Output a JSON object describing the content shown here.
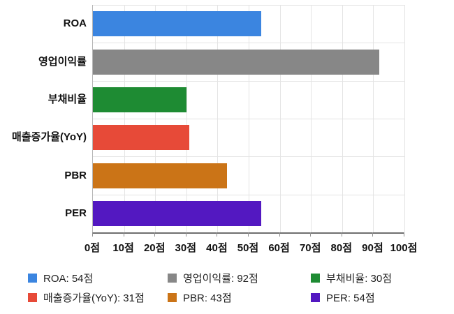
{
  "chart_data": {
    "type": "bar",
    "orientation": "horizontal",
    "title": "",
    "xlabel": "",
    "ylabel": "",
    "unit": "점",
    "grid": true,
    "legend_position": "bottom",
    "x_axis": {
      "min": 0,
      "max": 100,
      "tick_labels": [
        "0점",
        "10점",
        "20점",
        "30점",
        "40점",
        "50점",
        "60점",
        "70점",
        "80점",
        "90점",
        "100점"
      ]
    },
    "categories": [
      "ROA",
      "영업이익률",
      "부채비율",
      "매출증가율(YoY)",
      "PBR",
      "PER"
    ],
    "values": [
      54,
      92,
      30,
      31,
      43,
      54
    ],
    "series": [
      {
        "id": "roa",
        "category": "ROA",
        "value": 54,
        "color": "#3b85e0",
        "legend_label": "ROA: 54점"
      },
      {
        "id": "operating-margin",
        "category": "영업이익률",
        "value": 92,
        "color": "#878787",
        "legend_label": "영업이익률: 92점"
      },
      {
        "id": "debt-ratio",
        "category": "부채비율",
        "value": 30,
        "color": "#1e8b33",
        "legend_label": "부채비율: 30점"
      },
      {
        "id": "revenue-growth-yoy",
        "category": "매출증가율(YoY)",
        "value": 31,
        "color": "#e74a38",
        "legend_label": "매출증가율(YoY): 31점"
      },
      {
        "id": "pbr",
        "category": "PBR",
        "value": 43,
        "color": "#cb7417",
        "legend_label": "PBR: 43점"
      },
      {
        "id": "per",
        "category": "PER",
        "value": 54,
        "color": "#5318c1",
        "legend_label": "PER: 54점"
      }
    ]
  }
}
